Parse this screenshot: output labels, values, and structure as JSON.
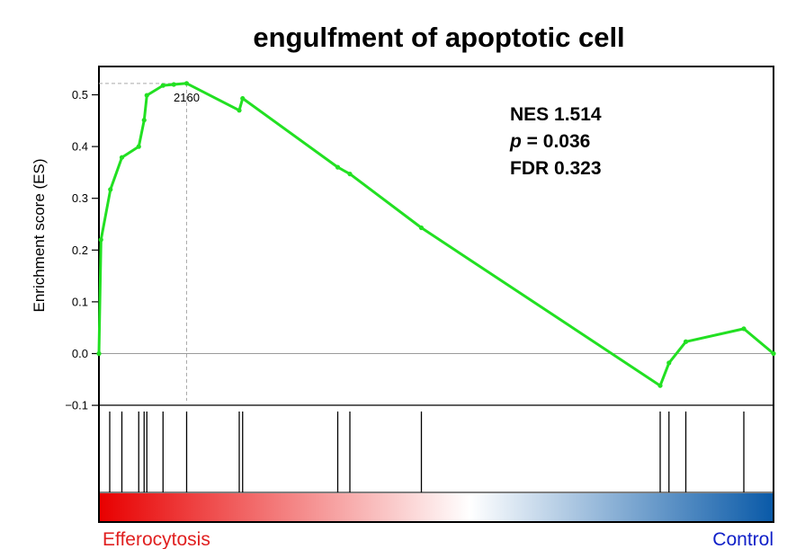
{
  "chart_data": {
    "type": "line",
    "title": "engulfment of apoptotic cell",
    "ylabel": "Enrichment score (ES)",
    "ylim": [
      -0.1,
      0.52
    ],
    "yticks": [
      "0.5",
      "0.4",
      "0.3",
      "0.2",
      "0.1",
      "0.0",
      "−0.1"
    ],
    "ytick_values": [
      0.5,
      0.4,
      0.3,
      0.2,
      0.1,
      0.0,
      -0.1
    ],
    "xlim": [
      0,
      100
    ],
    "grid": false,
    "series": [
      {
        "color": "#22e022",
        "x": [
          0,
          0.3,
          1.7,
          3.4,
          5.9,
          6.7,
          7.1,
          9.5,
          11.1,
          13.0,
          20.8,
          21.3,
          35.4,
          37.2,
          47.8,
          83.2,
          84.5,
          87.0,
          95.6,
          100
        ],
        "y": [
          0.0,
          0.22,
          0.317,
          0.379,
          0.4,
          0.451,
          0.499,
          0.518,
          0.52,
          0.522,
          0.47,
          0.493,
          0.36,
          0.347,
          0.243,
          -0.062,
          -0.018,
          0.023,
          0.048,
          0.0
        ]
      }
    ],
    "hits": [
      1.6,
      3.4,
      5.9,
      6.7,
      7.1,
      9.5,
      13.0,
      20.8,
      21.3,
      35.4,
      37.2,
      47.8,
      83.2,
      84.5,
      87.0,
      95.6
    ],
    "peak": {
      "x": 13.0,
      "y": 0.522,
      "label": "2160"
    },
    "annotations": {
      "nes": "NES  1.514",
      "p_italic": "p",
      "p_rest": " = 0.036",
      "fdr": "FDR  0.323"
    },
    "ranking_colors": {
      "start": "#e80000",
      "middle": "#ffffff",
      "end": "#0a5aa8"
    },
    "categories": [
      {
        "label": "Efferocytosis",
        "color": "#e02020"
      },
      {
        "label": "Control",
        "color": "#1020c8"
      }
    ]
  }
}
